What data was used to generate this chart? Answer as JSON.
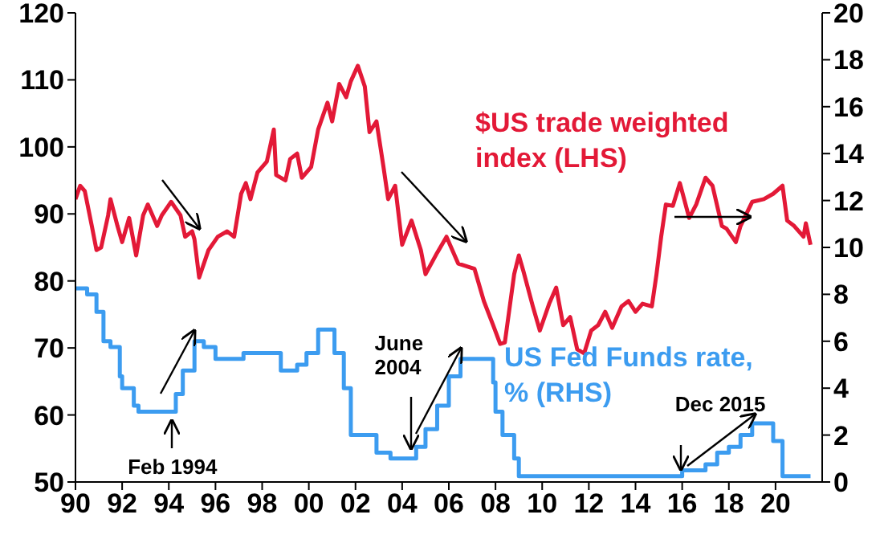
{
  "chart_data": {
    "type": "line",
    "xlim": [
      1990,
      2022
    ],
    "xticks": [
      {
        "value": 1990,
        "label": "90"
      },
      {
        "value": 1992,
        "label": "92"
      },
      {
        "value": 1994,
        "label": "94"
      },
      {
        "value": 1996,
        "label": "96"
      },
      {
        "value": 1998,
        "label": "98"
      },
      {
        "value": 2000,
        "label": "00"
      },
      {
        "value": 2002,
        "label": "02"
      },
      {
        "value": 2004,
        "label": "04"
      },
      {
        "value": 2006,
        "label": "06"
      },
      {
        "value": 2008,
        "label": "08"
      },
      {
        "value": 2010,
        "label": "10"
      },
      {
        "value": 2012,
        "label": "12"
      },
      {
        "value": 2014,
        "label": "14"
      },
      {
        "value": 2016,
        "label": "16"
      },
      {
        "value": 2018,
        "label": "18"
      },
      {
        "value": 2020,
        "label": "20"
      }
    ],
    "ylim": [
      50,
      120
    ],
    "yticks": [
      50,
      60,
      70,
      80,
      90,
      100,
      110,
      120
    ],
    "y2lim": [
      0,
      20
    ],
    "y2ticks": [
      0,
      2,
      4,
      6,
      8,
      10,
      12,
      14,
      16,
      18,
      20
    ],
    "grid": false,
    "legend": false,
    "annotations": [
      {
        "text": "Feb 1994",
        "x": 1994.1,
        "y": 60.5
      },
      {
        "text": "June 2004",
        "x": 2004.4,
        "y": 53.5
      },
      {
        "text": "Dec 2015",
        "x": 2015.9,
        "y": 50.9
      }
    ],
    "series": [
      {
        "name": "$US trade weighted index (LHS)",
        "type": "line",
        "color": "#e31937",
        "x": [
          1990.0,
          1990.2,
          1990.4,
          1990.7,
          1990.9,
          1991.1,
          1991.4,
          1991.5,
          1991.8,
          1992.0,
          1992.3,
          1992.6,
          1992.9,
          1993.1,
          1993.5,
          1993.7,
          1994.1,
          1994.5,
          1994.7,
          1995.0,
          1995.1,
          1995.3,
          1995.7,
          1996.1,
          1996.5,
          1996.8,
          1997.1,
          1997.3,
          1997.5,
          1997.8,
          1998.2,
          1998.5,
          1998.6,
          1999.0,
          1999.2,
          1999.5,
          1999.7,
          2000.1,
          2000.4,
          2000.8,
          2001.0,
          2001.3,
          2001.6,
          2001.8,
          2002.1,
          2002.4,
          2002.6,
          2002.9,
          2003.2,
          2003.4,
          2003.7,
          2004.0,
          2004.4,
          2004.8,
          2005.0,
          2005.5,
          2005.9,
          2006.4,
          2007.1,
          2007.5,
          2007.9,
          2008.2,
          2008.4,
          2008.8,
          2009.0,
          2009.2,
          2009.6,
          2009.9,
          2010.3,
          2010.6,
          2010.9,
          2011.2,
          2011.5,
          2011.8,
          2012.1,
          2012.4,
          2012.7,
          2013.0,
          2013.4,
          2013.7,
          2014.0,
          2014.3,
          2014.7,
          2014.9,
          2015.1,
          2015.3,
          2015.6,
          2015.9,
          2016.3,
          2016.6,
          2017.0,
          2017.3,
          2017.7,
          2017.9,
          2018.3,
          2018.5,
          2019.0,
          2019.5,
          2019.9,
          2020.3,
          2020.5,
          2020.8,
          2021.2,
          2021.3,
          2021.5
        ],
        "values": [
          92.2,
          94.2,
          93.4,
          88.2,
          84.6,
          85,
          89.8,
          92.2,
          88.2,
          85.8,
          89.4,
          83.8,
          89.8,
          91.4,
          88.2,
          89.8,
          91.8,
          89.8,
          86.6,
          87.4,
          86.2,
          80.5,
          84.6,
          86.6,
          87.4,
          86.6,
          93,
          94.6,
          92.2,
          96.2,
          97.8,
          102.6,
          95.8,
          95,
          98.2,
          99,
          95.4,
          97,
          102.6,
          106.6,
          103.8,
          109.4,
          107.4,
          109.8,
          112.1,
          109,
          102.2,
          103.8,
          97,
          92.2,
          94.2,
          85.4,
          89,
          84.6,
          81,
          84.2,
          86.6,
          82.6,
          81.8,
          77,
          73.4,
          70.6,
          70.8,
          81,
          83.8,
          81.4,
          76.2,
          72.6,
          76.6,
          79,
          73.4,
          74.6,
          69.8,
          69.2,
          72.6,
          73.4,
          75.4,
          73,
          76.2,
          77,
          75.4,
          76.6,
          76.2,
          81,
          86.6,
          91.4,
          91.2,
          94.6,
          89.4,
          91.4,
          95.4,
          94.2,
          88.2,
          87.8,
          85.8,
          88.2,
          91.8,
          92.2,
          93,
          94.2,
          89,
          88.2,
          86.6,
          88.6,
          85.4
        ]
      },
      {
        "name": "US Fed Funds rate, % (RHS)",
        "type": "step",
        "axis": "y2",
        "color": "#3c9cf0",
        "x": [
          1990.0,
          1990.5,
          1990.9,
          1991.2,
          1991.5,
          1991.9,
          1992.0,
          1992.5,
          1992.7,
          1994.1,
          1994.3,
          1994.6,
          1995.1,
          1995.5,
          1996.0,
          1997.2,
          1998.8,
          1999.5,
          1999.9,
          2000.4,
          2001.0,
          2001.1,
          2001.5,
          2001.8,
          2002.9,
          2003.5,
          2004.4,
          2004.6,
          2005.0,
          2005.5,
          2006.0,
          2006.5,
          2007.6,
          2007.9,
          2008.0,
          2008.3,
          2008.8,
          2009.0,
          2015.9,
          2016.0,
          2016.9,
          2017.0,
          2017.5,
          2018.0,
          2018.5,
          2019.0,
          2019.5,
          2019.9,
          2020.2,
          2020.3,
          2021.5
        ],
        "values": [
          8.25,
          8.0,
          7.25,
          6.0,
          5.75,
          4.5,
          4.0,
          3.25,
          3.0,
          3.0,
          3.75,
          4.75,
          6.0,
          5.75,
          5.25,
          5.5,
          4.75,
          5.0,
          5.5,
          6.5,
          6.5,
          5.5,
          4.0,
          2.0,
          1.25,
          1.0,
          1.0,
          1.5,
          2.25,
          3.25,
          4.5,
          5.25,
          5.25,
          4.25,
          3.0,
          2.0,
          1.0,
          0.25,
          0.25,
          0.5,
          0.5,
          0.75,
          1.25,
          1.5,
          2.0,
          2.5,
          2.5,
          1.75,
          1.75,
          0.25,
          0.25
        ]
      }
    ]
  }
}
